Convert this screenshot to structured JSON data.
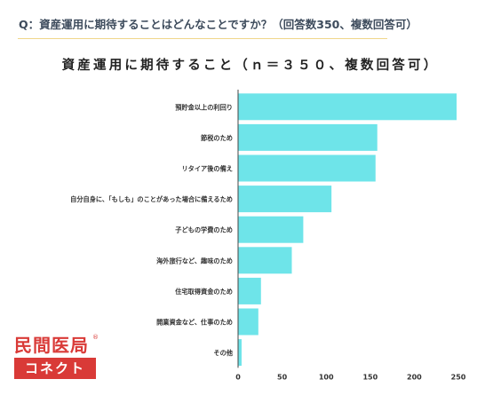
{
  "question": "Q：資産運用に期待することはどんなことですか？（回答数350、複数回答可）",
  "brand": {
    "name_top": "民間医局",
    "name_bottom": "コネクト",
    "registered_mark": "®",
    "color": "#d93a37"
  },
  "colors": {
    "bar": "#6ee4e9",
    "divider": "#f0d68a"
  },
  "chart_data": {
    "type": "bar",
    "orientation": "horizontal",
    "title": "資産運用に期待すること（ｎ＝３５０、複数回答可）",
    "categories": [
      "預貯金以上の利回り",
      "節税のため",
      "リタイア後の備え",
      "自分自身に、「もしも」のことがあった場合に備えるため",
      "子どもの学費のため",
      "海外旅行など、趣味のため",
      "住宅取得資金のため",
      "開業資金など、仕事のため",
      "その他"
    ],
    "values": [
      248,
      158,
      156,
      106,
      74,
      61,
      26,
      23,
      4
    ],
    "xlim": [
      0,
      250
    ],
    "xticks": [
      0,
      50,
      100,
      150,
      200,
      250
    ],
    "grid": false
  }
}
